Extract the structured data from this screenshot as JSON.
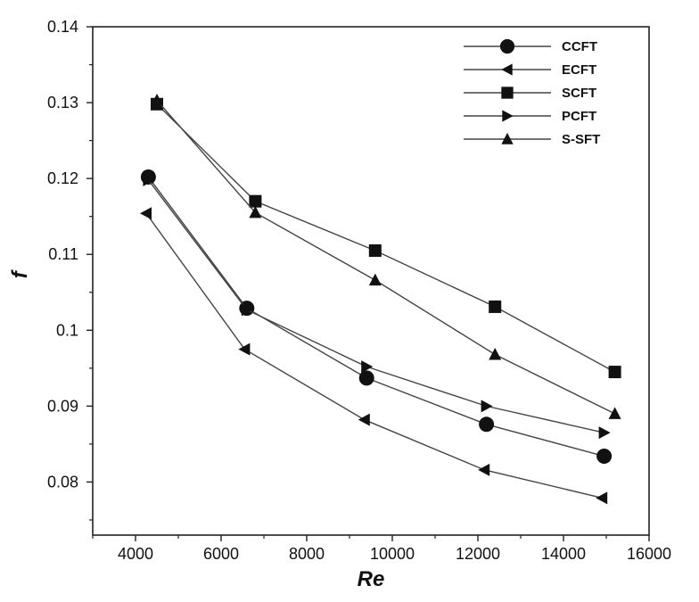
{
  "chart_data": {
    "type": "line",
    "xlabel": "Re",
    "ylabel": "f",
    "xlim": [
      3000,
      16000
    ],
    "ylim": [
      0.073,
      0.14
    ],
    "xticks": [
      4000,
      6000,
      8000,
      10000,
      12000,
      14000,
      16000
    ],
    "xtick_labels": [
      "4000",
      "6000",
      "8000",
      "10000",
      "12000",
      "14000",
      "16000"
    ],
    "yticks": [
      0.08,
      0.09,
      0.1,
      0.11,
      0.12,
      0.13,
      0.14
    ],
    "ytick_labels": [
      "0.08",
      "0.09",
      "0.1",
      "0.11",
      "0.12",
      "0.13",
      "0.14"
    ],
    "grid": false,
    "legend_position": "top-right",
    "series": [
      {
        "name": "CCFT",
        "marker": "circle",
        "x": [
          4300,
          6600,
          9400,
          12200,
          14950
        ],
        "y": [
          0.1202,
          0.1029,
          0.0937,
          0.0876,
          0.0834
        ]
      },
      {
        "name": "ECFT",
        "marker": "triangle-left",
        "x": [
          4250,
          6550,
          9350,
          12150,
          14900
        ],
        "y": [
          0.1154,
          0.0975,
          0.0882,
          0.0816,
          0.0779
        ]
      },
      {
        "name": "SCFT",
        "marker": "square",
        "x": [
          4500,
          6800,
          9600,
          12400,
          15200
        ],
        "y": [
          0.1298,
          0.117,
          0.1105,
          0.1031,
          0.0945
        ]
      },
      {
        "name": "PCFT",
        "marker": "triangle-right",
        "x": [
          4300,
          6600,
          9400,
          12200,
          14950
        ],
        "y": [
          0.1198,
          0.1027,
          0.0952,
          0.09,
          0.0865
        ]
      },
      {
        "name": "S-SFT",
        "marker": "triangle-up",
        "x": [
          4500,
          6800,
          9600,
          12400,
          15200
        ],
        "y": [
          0.1303,
          0.1155,
          0.1066,
          0.0968,
          0.089
        ]
      }
    ]
  }
}
